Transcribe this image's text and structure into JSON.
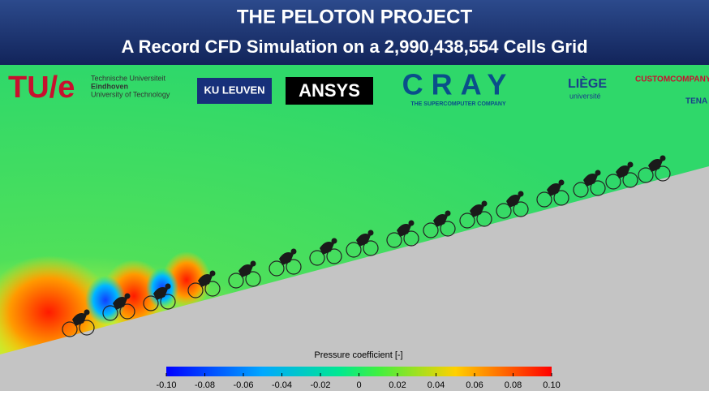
{
  "header": {
    "title": "THE PELOTON PROJECT",
    "subtitle": "A Record CFD Simulation on a 2,990,438,554 Cells Grid"
  },
  "logos": {
    "tue": "TU/e",
    "tue_lines": [
      "Technische Universiteit",
      "Eindhoven",
      "University of Technology"
    ],
    "kuleuven": "KU LEUVEN",
    "ansys": "ANSYS",
    "cray": "CRAY",
    "cray_tag": "THE SUPERCOMPUTER COMPANY",
    "liege": "LIÈGE",
    "liege_sub": "université",
    "custom": "CUSTOMCOMPANY",
    "tena": "TENA"
  },
  "colorbar": {
    "label": "Pressure coefficient [-]",
    "range": [
      -0.1,
      0.1
    ],
    "ticks": [
      {
        "value": -0.1,
        "label": "-0.10"
      },
      -0.08,
      -0.06,
      -0.04,
      -0.02,
      0,
      0.02,
      0.04,
      0.06,
      0.08,
      {
        "value": 0.1,
        "label": "0.10"
      }
    ]
  }
}
